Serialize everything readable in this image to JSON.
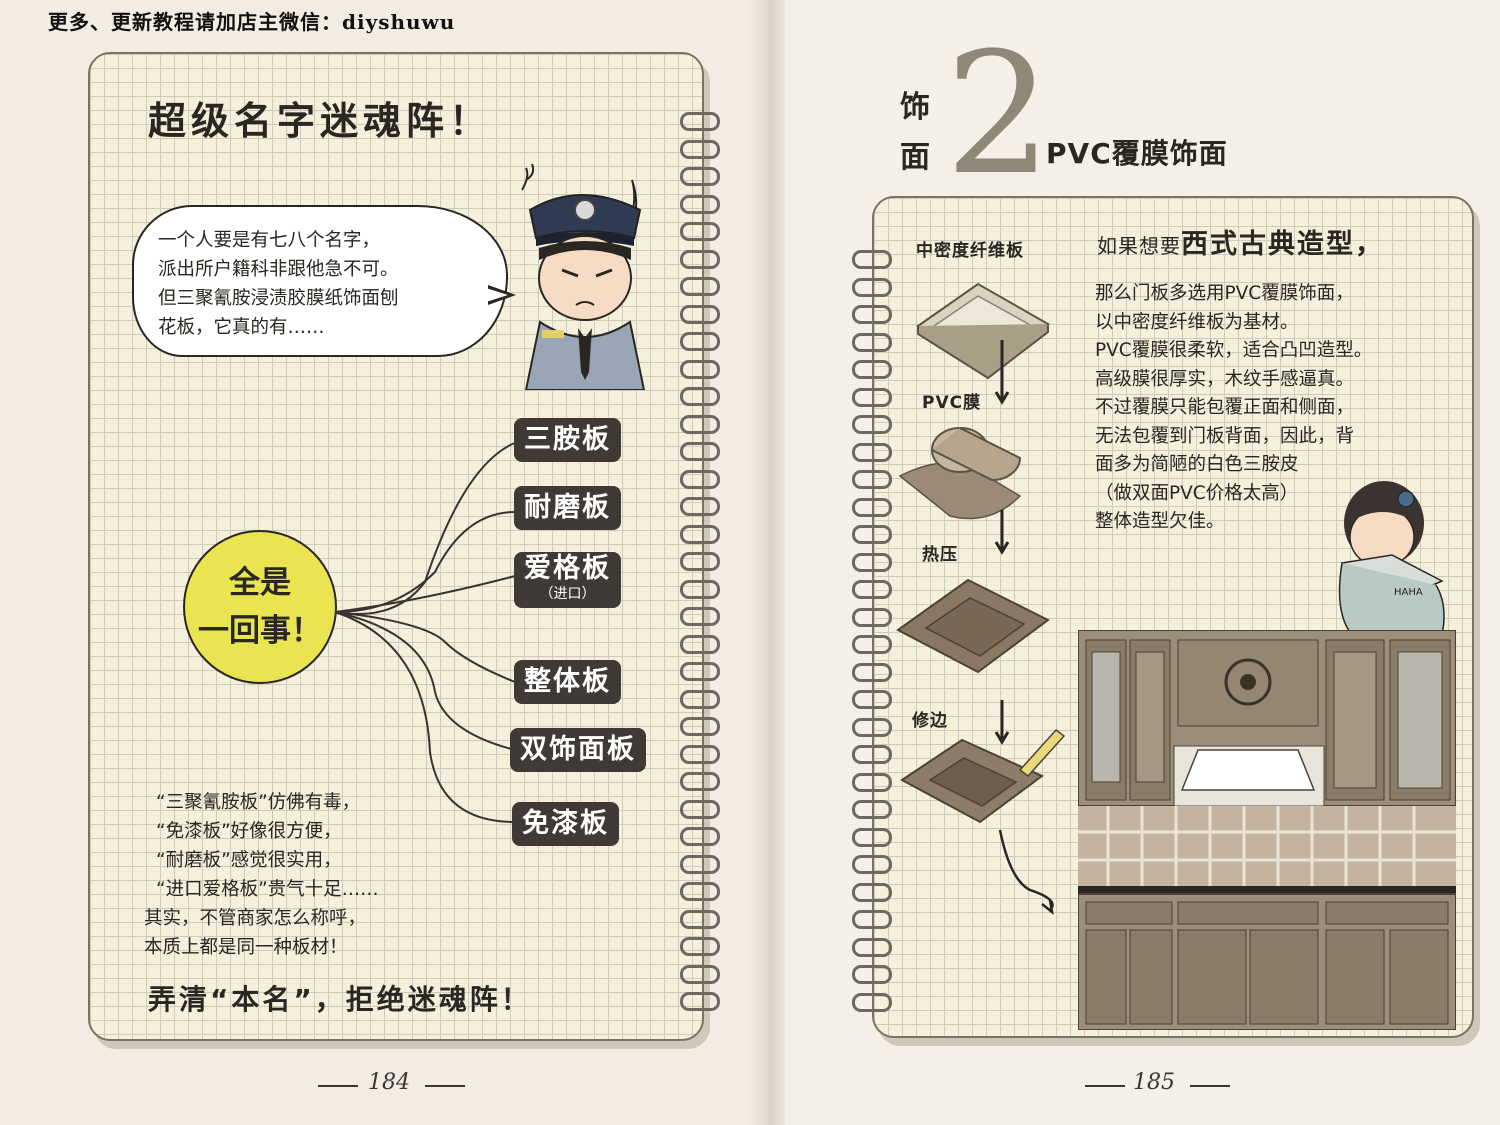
{
  "watermark": "更多、更新教程请加店主微信：diyshuwu",
  "left_page": {
    "title": "超级名字迷魂阵！",
    "speech": [
      "一个人要是有七八个名字，",
      "派出所户籍科非跟他急不可。",
      "但三聚氰胺浸渍胶膜纸饰面刨",
      "花板，它真的有……"
    ],
    "bubble": [
      "全是",
      "一回事！"
    ],
    "tags": [
      {
        "label": "三胺板",
        "sub": ""
      },
      {
        "label": "耐磨板",
        "sub": ""
      },
      {
        "label": "爱格板",
        "sub": "（进口）"
      },
      {
        "label": "整体板",
        "sub": ""
      },
      {
        "label": "双饰面板",
        "sub": ""
      },
      {
        "label": "免漆板",
        "sub": ""
      }
    ],
    "bottom_text": [
      "“三聚氰胺板”仿佛有毒，",
      "“免漆板”好像很方便，",
      "“耐磨板”感觉很实用，",
      "“进口爱格板”贵气十足……",
      "其实，不管商家怎么称呼，",
      "本质上都是同一种板材！"
    ],
    "slogan": "弄清“本名”，拒绝迷魂阵！",
    "page_number": "184"
  },
  "right_page": {
    "section_chars": [
      "饰",
      "面"
    ],
    "section_number": "2",
    "section_title": "PVC覆膜饰面",
    "steps": [
      "中密度纤维板",
      "PVC膜",
      "热压",
      "修边"
    ],
    "intro_prefix": "如果想要",
    "intro_highlight": "西式古典造型，",
    "body": [
      "那么门板多选用PVC覆膜饰面，",
      "以中密度纤维板为基材。",
      "PVC覆膜很柔软，适合凸凹造型。",
      "高级膜很厚实，木纹手感逼真。",
      "不过覆膜只能包覆正面和侧面，",
      "无法包覆到门板背面，因此，背",
      "面多为简陋的白色三胺皮",
      "（做双面PVC价格太高）",
      "整体造型欠佳。"
    ],
    "fan_text": "HAHA",
    "page_number": "185"
  }
}
